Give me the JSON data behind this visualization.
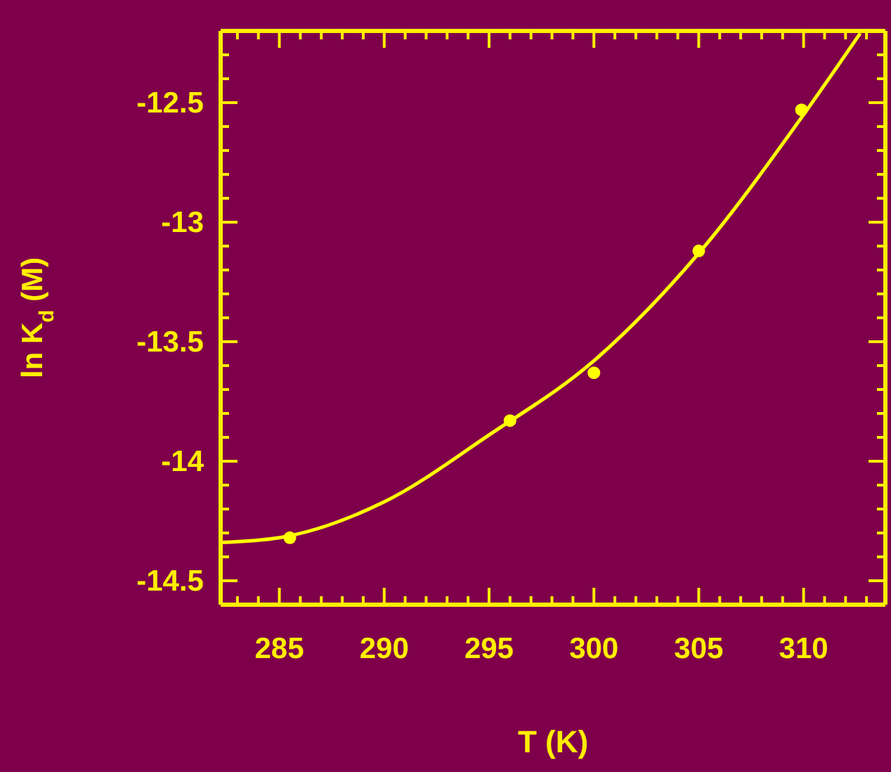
{
  "chart_data": {
    "type": "scatter",
    "xlabel": "T (K)",
    "ylabel": "ln K$_{d}$ (M)",
    "xlim": [
      282.2,
      313.9
    ],
    "ylim": [
      -14.6,
      -12.2
    ],
    "xticks": [
      {
        "value": 283,
        "label": null
      },
      {
        "value": 284,
        "label": null
      },
      285,
      {
        "value": 286,
        "label": null
      },
      {
        "value": 287,
        "label": null
      },
      {
        "value": 288,
        "label": null
      },
      {
        "value": 289,
        "label": null
      },
      290,
      {
        "value": 291,
        "label": null
      },
      {
        "value": 292,
        "label": null
      },
      {
        "value": 293,
        "label": null
      },
      {
        "value": 294,
        "label": null
      },
      295,
      {
        "value": 296,
        "label": null
      },
      {
        "value": 297,
        "label": null
      },
      {
        "value": 298,
        "label": null
      },
      {
        "value": 299,
        "label": null
      },
      300,
      {
        "value": 301,
        "label": null
      },
      {
        "value": 302,
        "label": null
      },
      {
        "value": 303,
        "label": null
      },
      {
        "value": 304,
        "label": null
      },
      305,
      {
        "value": 306,
        "label": null
      },
      {
        "value": 307,
        "label": null
      },
      {
        "value": 308,
        "label": null
      },
      {
        "value": 309,
        "label": null
      },
      310,
      {
        "value": 311,
        "label": null
      },
      {
        "value": 312,
        "label": null
      },
      {
        "value": 313,
        "label": null
      }
    ],
    "yticks": [
      {
        "value": -14.5,
        "label": "-14.5"
      },
      {
        "value": -14.4,
        "label": null
      },
      {
        "value": -14.3,
        "label": null
      },
      {
        "value": -14.2,
        "label": null
      },
      {
        "value": -14.1,
        "label": null
      },
      {
        "value": -14,
        "label": "-14"
      },
      {
        "value": -13.9,
        "label": null
      },
      {
        "value": -13.8,
        "label": null
      },
      {
        "value": -13.7,
        "label": null
      },
      {
        "value": -13.6,
        "label": null
      },
      {
        "value": -13.5,
        "label": "-13.5"
      },
      {
        "value": -13.4,
        "label": null
      },
      {
        "value": -13.3,
        "label": null
      },
      {
        "value": -13.2,
        "label": null
      },
      {
        "value": -13.1,
        "label": null
      },
      {
        "value": -13,
        "label": "-13"
      },
      {
        "value": -12.9,
        "label": null
      },
      {
        "value": -12.8,
        "label": null
      },
      {
        "value": -12.7,
        "label": null
      },
      {
        "value": -12.6,
        "label": null
      },
      {
        "value": -12.5,
        "label": "-12.5"
      },
      {
        "value": -12.4,
        "label": null
      },
      {
        "value": -12.3,
        "label": null
      }
    ],
    "series": [
      {
        "color": "#ffff00",
        "marker": "circle",
        "x": [
          285.5,
          296.0,
          300.0,
          305.0,
          309.9
        ],
        "values": [
          -14.32,
          -13.83,
          -13.63,
          -13.12,
          -12.53
        ]
      },
      {
        "type": "line",
        "color": "#ffff00",
        "line_style": "solid",
        "x": [
          282.2,
          285,
          290,
          295,
          300,
          305,
          310,
          312.7
        ],
        "values": [
          -14.34,
          -14.32,
          -14.17,
          -13.89,
          -13.58,
          -13.13,
          -12.55,
          -12.21
        ]
      }
    ]
  }
}
